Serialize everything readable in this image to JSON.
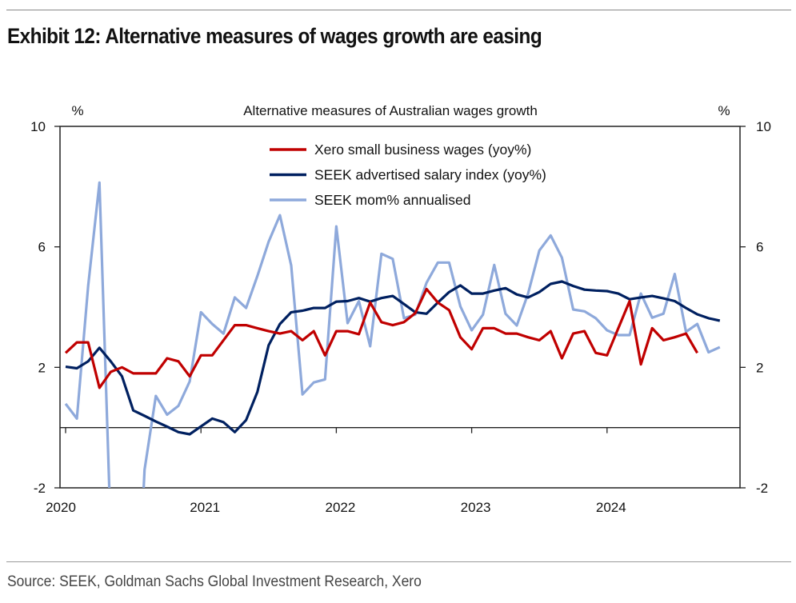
{
  "header": {
    "title": "Exhibit 12: Alternative measures of wages growth are easing"
  },
  "footer": {
    "source": "Source: SEEK, Goldman Sachs Global Investment Research, Xero"
  },
  "chart_data": {
    "type": "line",
    "title": "Alternative measures of Australian wages growth",
    "ylabel_left": "%",
    "ylabel_right": "%",
    "ylim": [
      -2,
      10
    ],
    "yticks": [
      -2,
      2,
      6,
      10
    ],
    "xticks": [
      "2020",
      "2021",
      "2022",
      "2023",
      "2024"
    ],
    "x_start": "2020-01",
    "x_frequency": "monthly",
    "legend_position": "top-center",
    "grid": false,
    "series": [
      {
        "name": "Xero small business wages (yoy%)",
        "color": "#C00000",
        "values": [
          2.48,
          2.83,
          2.83,
          1.32,
          1.85,
          2.0,
          1.8,
          1.8,
          1.8,
          2.3,
          2.2,
          1.7,
          2.4,
          2.4,
          2.9,
          3.4,
          3.4,
          3.3,
          3.2,
          3.12,
          3.2,
          2.9,
          3.2,
          2.4,
          3.2,
          3.2,
          3.1,
          4.15,
          3.5,
          3.4,
          3.5,
          3.8,
          4.6,
          4.15,
          3.9,
          3.0,
          2.6,
          3.3,
          3.3,
          3.12,
          3.12,
          3.0,
          2.9,
          3.2,
          2.3,
          3.12,
          3.2,
          2.48,
          2.4,
          3.3,
          4.2,
          2.1,
          3.3,
          2.9,
          3.0,
          3.12,
          2.48
        ]
      },
      {
        "name": "SEEK advertised salary index (yoy%)",
        "color": "#002060",
        "values": [
          2.02,
          1.97,
          2.2,
          2.65,
          2.2,
          1.7,
          0.57,
          0.39,
          0.2,
          0.03,
          -0.15,
          -0.22,
          0.04,
          0.3,
          0.18,
          -0.15,
          0.25,
          1.18,
          2.73,
          3.44,
          3.83,
          3.88,
          3.97,
          3.97,
          4.18,
          4.2,
          4.3,
          4.18,
          4.3,
          4.37,
          4.1,
          3.83,
          3.78,
          4.15,
          4.5,
          4.72,
          4.45,
          4.45,
          4.55,
          4.63,
          4.42,
          4.32,
          4.5,
          4.77,
          4.85,
          4.7,
          4.58,
          4.55,
          4.53,
          4.45,
          4.26,
          4.32,
          4.37,
          4.29,
          4.2,
          3.97,
          3.76,
          3.63,
          3.55
        ]
      },
      {
        "name": "SEEK mom% annualised",
        "color": "#8EA9DB",
        "values": [
          0.79,
          0.3,
          4.7,
          8.13,
          -3.5,
          -6,
          -9,
          -1.4,
          1.05,
          0.43,
          0.72,
          1.53,
          3.83,
          3.44,
          3.12,
          4.32,
          3.97,
          5.03,
          6.17,
          7.05,
          5.38,
          1.1,
          1.5,
          1.6,
          6.68,
          3.47,
          4.2,
          2.7,
          5.77,
          5.6,
          3.63,
          3.75,
          4.81,
          5.48,
          5.48,
          4.02,
          3.23,
          3.75,
          5.4,
          3.78,
          3.39,
          4.45,
          5.88,
          6.38,
          5.64,
          3.92,
          3.86,
          3.63,
          3.23,
          3.07,
          3.07,
          4.45,
          3.65,
          3.78,
          5.1,
          3.18,
          3.44,
          2.5,
          2.67
        ]
      }
    ]
  }
}
